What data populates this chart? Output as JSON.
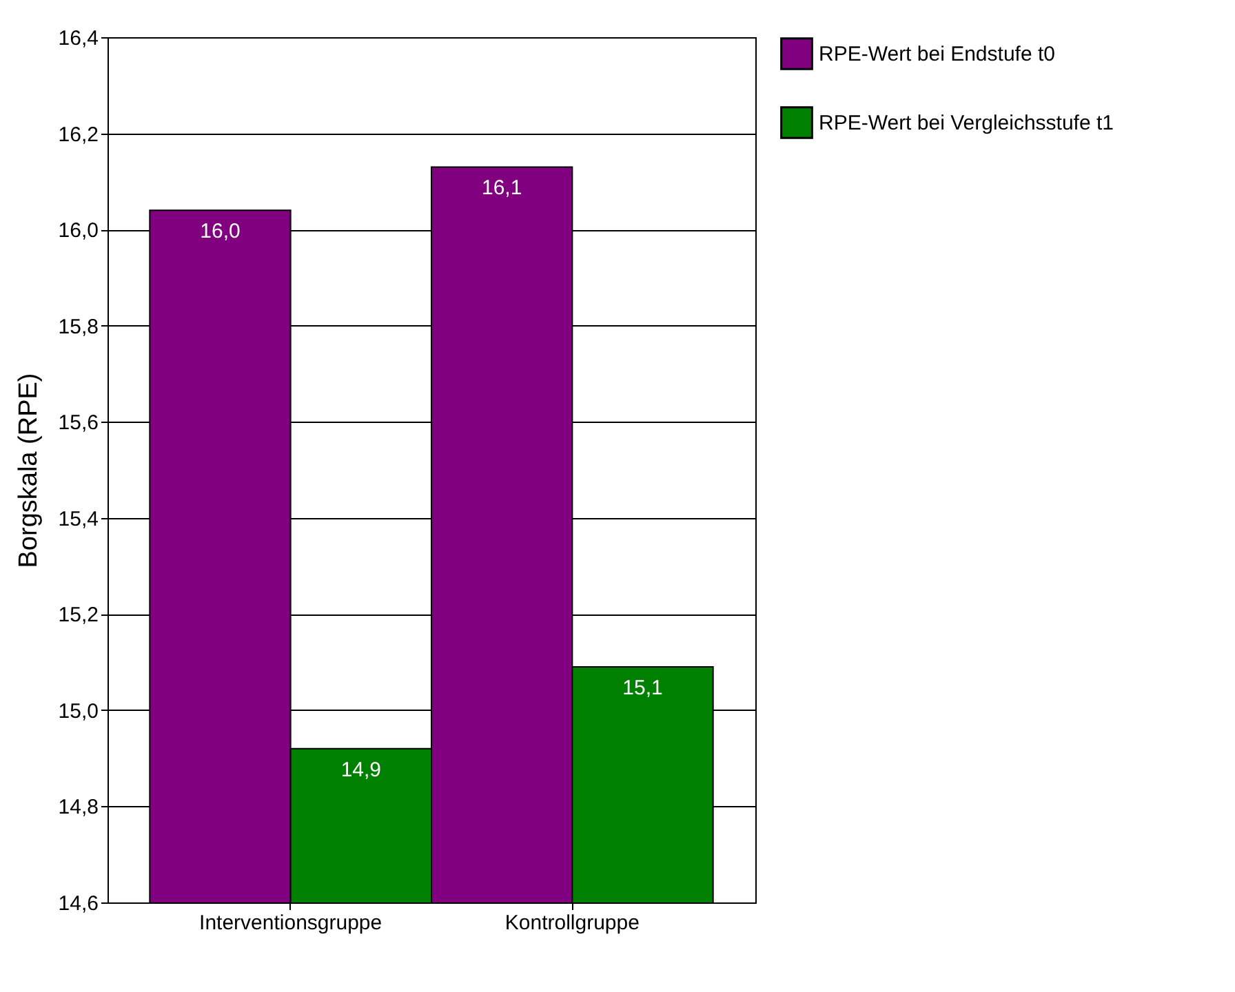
{
  "chart_data": {
    "type": "bar",
    "ylabel": "Borgskala (RPE)",
    "categories": [
      "Interventionsgruppe",
      "Kontrollgruppe"
    ],
    "series": [
      {
        "name": "RPE-Wert bei Endstufe t0",
        "color": "#800080",
        "values": [
          16.04,
          16.13
        ],
        "value_labels": [
          "16,0",
          "16,1"
        ]
      },
      {
        "name": "RPE-Wert bei Vergleichsstufe t1",
        "color": "#008000",
        "values": [
          14.92,
          15.09
        ],
        "value_labels": [
          "14,9",
          "15,1"
        ]
      }
    ],
    "ylim": [
      14.6,
      16.4
    ],
    "yticks": [
      {
        "value": 14.6,
        "label": "14,6"
      },
      {
        "value": 14.8,
        "label": "14,8"
      },
      {
        "value": 15.0,
        "label": "15,0"
      },
      {
        "value": 15.2,
        "label": "15,2"
      },
      {
        "value": 15.4,
        "label": "15,4"
      },
      {
        "value": 15.6,
        "label": "15,6"
      },
      {
        "value": 15.8,
        "label": "15,8"
      },
      {
        "value": 16.0,
        "label": "16,0"
      },
      {
        "value": 16.2,
        "label": "16,2"
      },
      {
        "value": 16.4,
        "label": "16,4"
      }
    ],
    "grid": "y",
    "legend": "right"
  }
}
